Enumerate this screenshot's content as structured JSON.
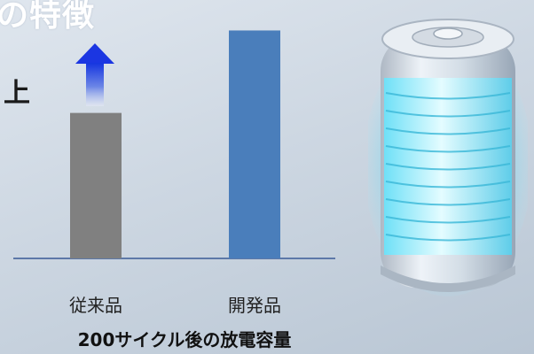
{
  "header": {
    "title_fragment": "の特徴",
    "side_char": "上"
  },
  "chart_data": {
    "type": "bar",
    "categories": [
      "従来品",
      "開発品"
    ],
    "values": [
      60,
      94
    ],
    "series_colors": [
      "#808080",
      "#4a7ebb"
    ],
    "xlabel": "200サイクル後の放電容量",
    "ylabel": "",
    "ylim": [
      0,
      100
    ],
    "grid": false,
    "annotation": "up-arrow-icon"
  }
}
